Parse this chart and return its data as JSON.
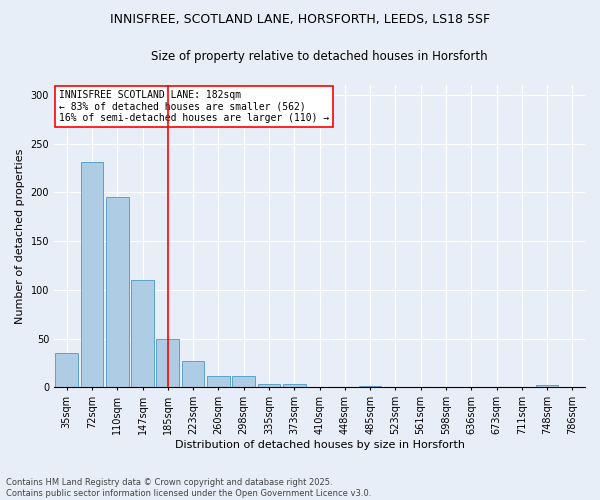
{
  "title_line1": "INNISFREE, SCOTLAND LANE, HORSFORTH, LEEDS, LS18 5SF",
  "title_line2": "Size of property relative to detached houses in Horsforth",
  "xlabel": "Distribution of detached houses by size in Horsforth",
  "ylabel": "Number of detached properties",
  "categories": [
    "35sqm",
    "72sqm",
    "110sqm",
    "147sqm",
    "185sqm",
    "223sqm",
    "260sqm",
    "298sqm",
    "335sqm",
    "373sqm",
    "410sqm",
    "448sqm",
    "485sqm",
    "523sqm",
    "561sqm",
    "598sqm",
    "636sqm",
    "673sqm",
    "711sqm",
    "748sqm",
    "786sqm"
  ],
  "values": [
    35,
    231,
    195,
    110,
    50,
    27,
    12,
    12,
    4,
    4,
    0,
    0,
    1,
    0,
    0,
    0,
    0,
    0,
    0,
    2,
    0
  ],
  "bar_color": "#aecce4",
  "bar_edge_color": "#5ba3c9",
  "vline_x": 4,
  "vline_color": "red",
  "annotation_text": "INNISFREE SCOTLAND LANE: 182sqm\n← 83% of detached houses are smaller (562)\n16% of semi-detached houses are larger (110) →",
  "annotation_box_color": "white",
  "annotation_box_edge": "red",
  "ylim": [
    0,
    310
  ],
  "yticks": [
    0,
    50,
    100,
    150,
    200,
    250,
    300
  ],
  "background_color": "#e8eef7",
  "footer_text": "Contains HM Land Registry data © Crown copyright and database right 2025.\nContains public sector information licensed under the Open Government Licence v3.0.",
  "title_fontsize": 9,
  "subtitle_fontsize": 8.5,
  "axis_label_fontsize": 8,
  "tick_fontsize": 7,
  "annotation_fontsize": 7,
  "footer_fontsize": 6
}
